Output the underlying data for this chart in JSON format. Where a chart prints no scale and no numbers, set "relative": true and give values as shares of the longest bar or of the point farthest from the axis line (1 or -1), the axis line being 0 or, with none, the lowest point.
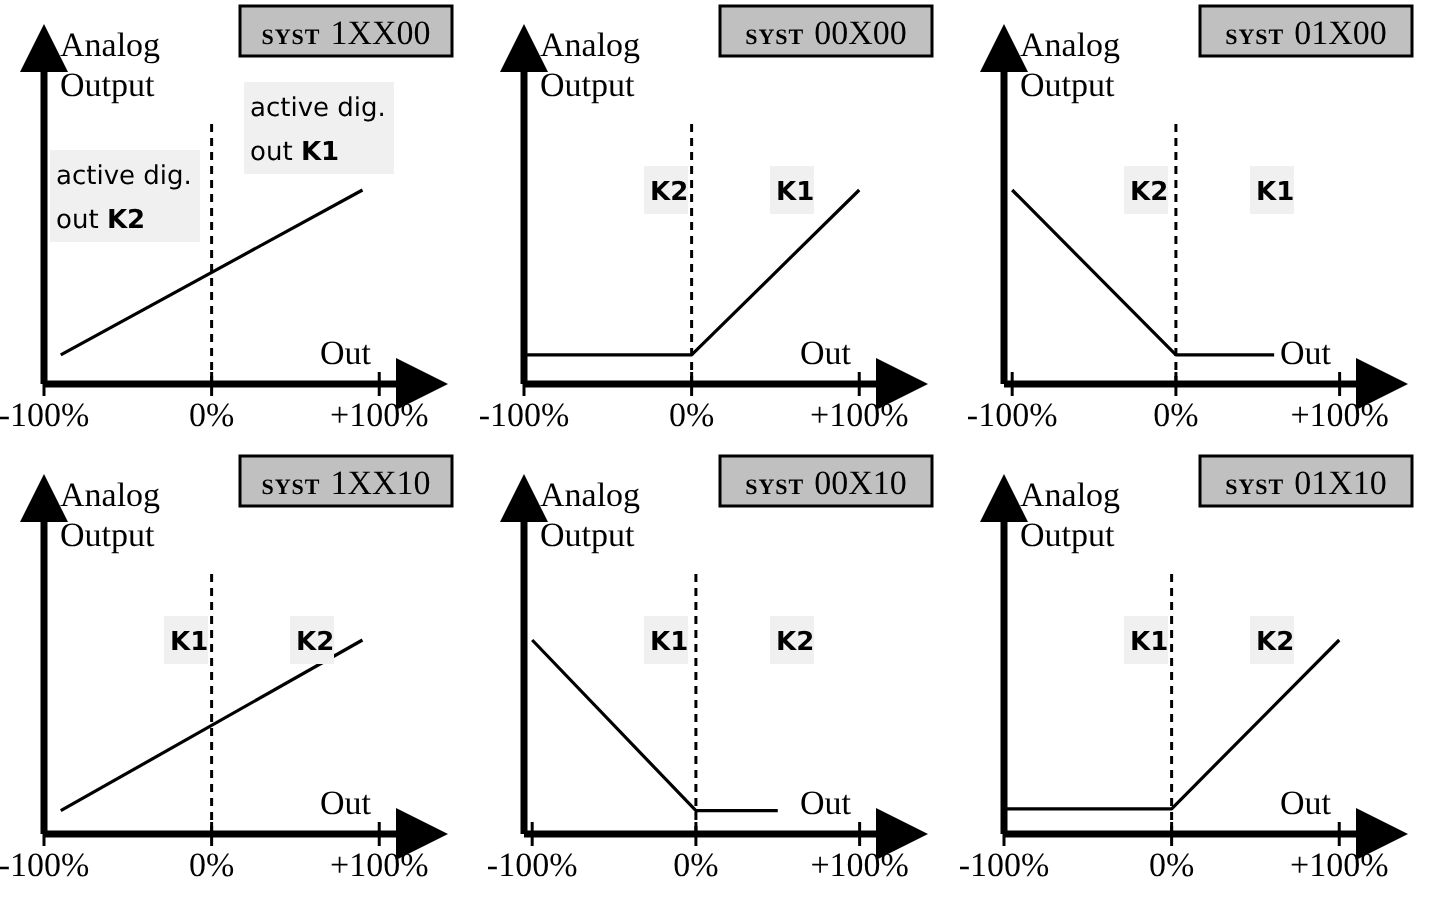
{
  "chart_data": [
    {
      "type": "line",
      "title": "SYST 1XX00",
      "xlabel": "Out",
      "ylabel": "Analog Output",
      "relative": true,
      "xlim": [
        -100,
        110
      ],
      "xticks": [
        {
          "value": -100,
          "label": "-100%"
        },
        {
          "value": 0,
          "label": "0%"
        },
        {
          "value": 100,
          "label": "+100%"
        }
      ],
      "ref_lines": [
        {
          "axis": "x",
          "value": 0,
          "line_style": "dashed"
        }
      ],
      "annotations": [
        "active dig.\nout K2",
        "active dig.\nout K1"
      ],
      "series": [
        {
          "color": "#000000",
          "x": [
            -90,
            90
          ],
          "values": [
            0.15,
            1
          ]
        }
      ]
    },
    {
      "type": "line",
      "title": "SYST 00X00",
      "xlabel": "Out",
      "ylabel": "Analog Output",
      "relative": true,
      "xlim": [
        -100,
        110
      ],
      "xticks": [
        {
          "value": -100,
          "label": "-100%"
        },
        {
          "value": 0,
          "label": "0%"
        },
        {
          "value": 100,
          "label": "+100%"
        }
      ],
      "ref_lines": [
        {
          "axis": "x",
          "value": 0,
          "line_style": "dashed"
        }
      ],
      "annotations": [
        "K2",
        "K1"
      ],
      "series": [
        {
          "color": "#000000",
          "x": [
            -100,
            0,
            100
          ],
          "values": [
            0.15,
            0.15,
            1
          ]
        }
      ]
    },
    {
      "type": "line",
      "title": "SYST 01X00",
      "xlabel": "Out",
      "ylabel": "Analog Output",
      "relative": true,
      "xlim": [
        -105,
        110
      ],
      "xticks": [
        {
          "value": -100,
          "label": "-100%"
        },
        {
          "value": 0,
          "label": "0%"
        },
        {
          "value": 100,
          "label": "+100%"
        }
      ],
      "ref_lines": [
        {
          "axis": "x",
          "value": 0,
          "line_style": "dashed"
        }
      ],
      "annotations": [
        "K2",
        "K1"
      ],
      "series": [
        {
          "color": "#000000",
          "x": [
            -100,
            0,
            60
          ],
          "values": [
            1,
            0.15,
            0.15
          ]
        }
      ]
    },
    {
      "type": "line",
      "title": "SYST 1XX10",
      "xlabel": "Out",
      "ylabel": "Analog Output",
      "relative": true,
      "xlim": [
        -100,
        110
      ],
      "xticks": [
        {
          "value": -100,
          "label": "-100%"
        },
        {
          "value": 0,
          "label": "0%"
        },
        {
          "value": 100,
          "label": "+100%"
        }
      ],
      "ref_lines": [
        {
          "axis": "x",
          "value": 0,
          "line_style": "dashed"
        }
      ],
      "annotations": [
        "K1",
        "K2"
      ],
      "series": [
        {
          "color": "#000000",
          "x": [
            -90,
            90
          ],
          "values": [
            0.12,
            1
          ]
        }
      ]
    },
    {
      "type": "line",
      "title": "SYST 00X10",
      "xlabel": "Out",
      "ylabel": "Analog Output",
      "relative": true,
      "xlim": [
        -105,
        110
      ],
      "xticks": [
        {
          "value": -100,
          "label": "-100%"
        },
        {
          "value": 0,
          "label": "0%"
        },
        {
          "value": 100,
          "label": "+100%"
        }
      ],
      "ref_lines": [
        {
          "axis": "x",
          "value": 0,
          "line_style": "dashed"
        }
      ],
      "annotations": [
        "K1",
        "K2"
      ],
      "series": [
        {
          "color": "#000000",
          "x": [
            -100,
            0,
            50
          ],
          "values": [
            1,
            0.12,
            0.12
          ]
        }
      ]
    },
    {
      "type": "line",
      "title": "SYST 01X10",
      "xlabel": "Out",
      "ylabel": "Analog Output",
      "relative": true,
      "xlim": [
        -100,
        110
      ],
      "xticks": [
        {
          "value": -100,
          "label": "-100%"
        },
        {
          "value": 0,
          "label": "0%"
        },
        {
          "value": 100,
          "label": "+100%"
        }
      ],
      "ref_lines": [
        {
          "axis": "x",
          "value": 0,
          "line_style": "dashed"
        }
      ],
      "annotations": [
        "K1",
        "K2"
      ],
      "series": [
        {
          "color": "#000000",
          "x": [
            -100,
            0,
            100
          ],
          "values": [
            0.13,
            0.13,
            1
          ]
        }
      ]
    }
  ]
}
